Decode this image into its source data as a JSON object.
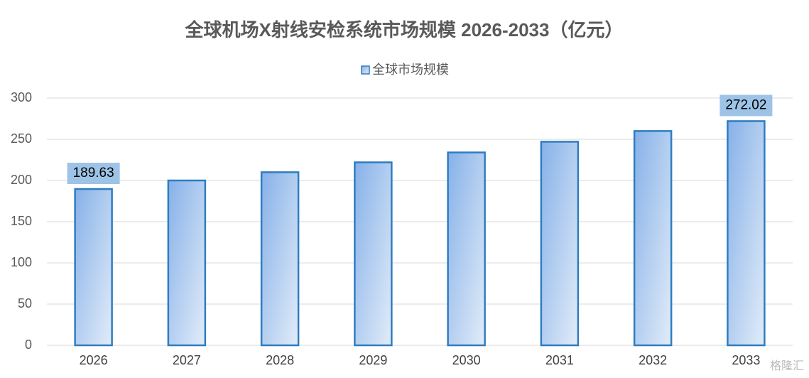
{
  "chart_data": {
    "type": "bar",
    "title": "全球机场X射线安检系统市场规模 2026-2033（亿元）",
    "series": [
      {
        "name": "全球市场规模",
        "color": "#2e7dc0",
        "values": [
          189.63,
          200,
          210,
          222,
          234,
          247,
          260,
          272.02
        ],
        "value_labels": [
          "189.63",
          null,
          null,
          null,
          null,
          null,
          null,
          "272.02"
        ]
      }
    ],
    "categories": [
      "2026",
      "2027",
      "2028",
      "2029",
      "2030",
      "2031",
      "2032",
      "2033"
    ],
    "ylim": [
      0,
      300
    ],
    "yticks": [
      0,
      50,
      100,
      150,
      200,
      250,
      300
    ],
    "grid": true,
    "legend": "top",
    "watermark": "格隆汇"
  }
}
